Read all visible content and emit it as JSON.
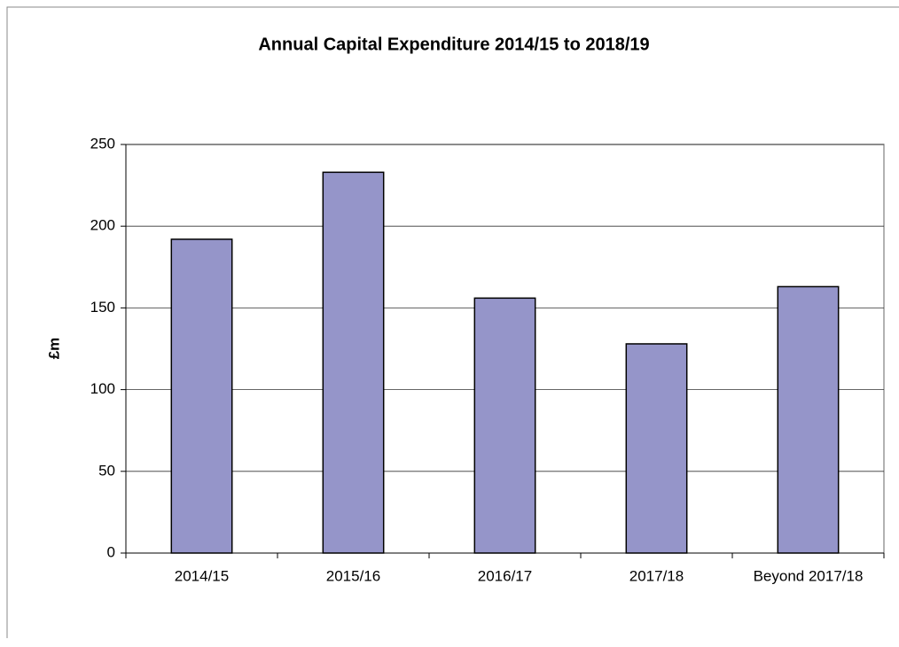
{
  "chart_data": {
    "type": "bar",
    "title": "Annual Capital Expenditure 2014/15 to 2018/19",
    "y_label": "£m",
    "categories": [
      "2014/15",
      "2015/16",
      "2016/17",
      "2017/18",
      "Beyond 2017/18"
    ],
    "values": [
      192,
      233,
      156,
      128,
      163
    ],
    "color": "#9595c9",
    "ylim": [
      0,
      250
    ],
    "yticks": [
      0,
      50,
      100,
      150,
      200,
      250
    ],
    "grid": true
  }
}
